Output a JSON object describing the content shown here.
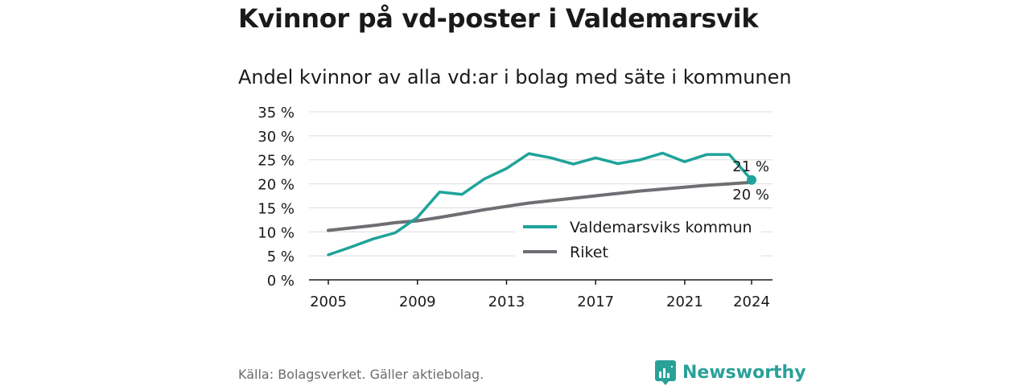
{
  "title": "Kvinnor på vd-poster i Valdemarsvik",
  "subtitle": "Andel kvinnor av alla vd:ar i bolag med säte i kommunen",
  "source": "Källa: Bolagsverket. Gäller aktiebolag.",
  "brand": {
    "name": "Newsworthy",
    "icon": "bar-chart-speech-bubble-icon",
    "color": "#2aa198"
  },
  "chart_data": {
    "type": "line",
    "x": [
      2005,
      2006,
      2007,
      2008,
      2009,
      2010,
      2011,
      2012,
      2013,
      2014,
      2015,
      2016,
      2017,
      2018,
      2019,
      2020,
      2021,
      2022,
      2023,
      2024
    ],
    "xticks": [
      "2005",
      "2009",
      "2013",
      "2017",
      "2021",
      "2024"
    ],
    "xlim": [
      2005,
      2024
    ],
    "ylim": [
      0,
      35
    ],
    "yticks": [
      "0 %",
      "5 %",
      "10 %",
      "15 %",
      "20 %",
      "25 %",
      "30 %",
      "35 %"
    ],
    "grid": "horizontal",
    "legend_position": "right",
    "series": [
      {
        "name": "Valdemarsviks kommun",
        "color": "#1fa39a",
        "values": [
          5.2,
          6.8,
          8.5,
          9.8,
          13.0,
          18.3,
          17.8,
          21.0,
          23.2,
          26.3,
          25.4,
          24.1,
          25.4,
          24.2,
          25.0,
          26.4,
          24.6,
          26.1,
          26.1,
          20.8
        ],
        "end_label": "21 %"
      },
      {
        "name": "Riket",
        "color": "#6e6e73",
        "values": [
          10.3,
          10.8,
          11.3,
          11.9,
          12.3,
          13.0,
          13.8,
          14.6,
          15.3,
          16.0,
          16.5,
          17.0,
          17.5,
          18.0,
          18.5,
          18.9,
          19.3,
          19.7,
          20.0,
          20.3
        ],
        "end_label": "20 %"
      }
    ]
  }
}
